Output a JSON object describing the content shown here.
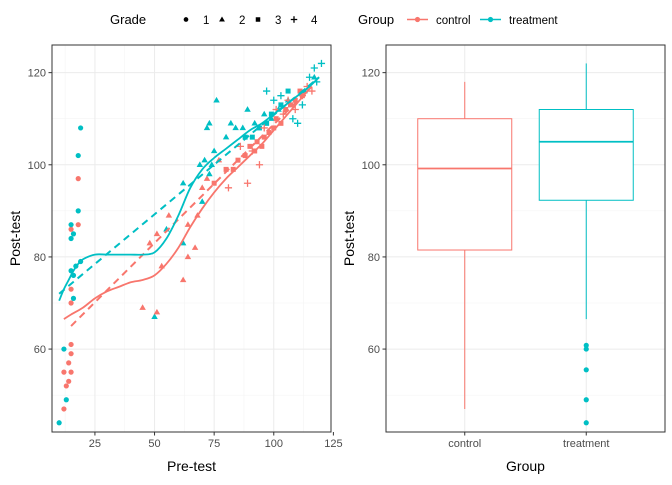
{
  "colors": {
    "control": "#F8766D",
    "treatment": "#00BFC4"
  },
  "legend": {
    "grade_title": "Grade",
    "grade_items": [
      {
        "label": "1",
        "shape": "circle"
      },
      {
        "label": "2",
        "shape": "triangle"
      },
      {
        "label": "3",
        "shape": "square"
      },
      {
        "label": "4",
        "shape": "plus"
      }
    ],
    "group_title": "Group",
    "group_items": [
      {
        "label": "control",
        "color": "#F8766D"
      },
      {
        "label": "treatment",
        "color": "#00BFC4"
      }
    ]
  },
  "chart_data": [
    {
      "type": "scatter",
      "xlabel": "Pre-test",
      "ylabel": "Post-test",
      "xlim": [
        7,
        124
      ],
      "ylim": [
        42,
        126
      ],
      "xticks": [
        25,
        50,
        75,
        100,
        125
      ],
      "yticks": [
        60,
        80,
        100,
        120
      ],
      "grid": true,
      "points": [
        {
          "x": 10,
          "y": 44,
          "group": "treatment",
          "grade": 1
        },
        {
          "x": 12,
          "y": 47,
          "group": "control",
          "grade": 1
        },
        {
          "x": 13,
          "y": 49,
          "group": "treatment",
          "grade": 1
        },
        {
          "x": 13,
          "y": 52,
          "group": "control",
          "grade": 1
        },
        {
          "x": 14,
          "y": 53,
          "group": "control",
          "grade": 1
        },
        {
          "x": 12,
          "y": 55,
          "group": "control",
          "grade": 1
        },
        {
          "x": 15,
          "y": 55,
          "group": "control",
          "grade": 1
        },
        {
          "x": 14,
          "y": 57,
          "group": "control",
          "grade": 1
        },
        {
          "x": 15,
          "y": 59,
          "group": "control",
          "grade": 1
        },
        {
          "x": 12,
          "y": 60,
          "group": "treatment",
          "grade": 1
        },
        {
          "x": 15,
          "y": 61,
          "group": "control",
          "grade": 1
        },
        {
          "x": 15,
          "y": 70,
          "group": "control",
          "grade": 1
        },
        {
          "x": 16,
          "y": 71,
          "group": "treatment",
          "grade": 1
        },
        {
          "x": 15,
          "y": 73,
          "group": "control",
          "grade": 1
        },
        {
          "x": 16,
          "y": 76,
          "group": "treatment",
          "grade": 1
        },
        {
          "x": 15,
          "y": 77,
          "group": "treatment",
          "grade": 1
        },
        {
          "x": 17,
          "y": 78,
          "group": "treatment",
          "grade": 1
        },
        {
          "x": 19,
          "y": 79,
          "group": "treatment",
          "grade": 1
        },
        {
          "x": 15,
          "y": 84,
          "group": "treatment",
          "grade": 1
        },
        {
          "x": 16,
          "y": 85,
          "group": "treatment",
          "grade": 1
        },
        {
          "x": 15,
          "y": 86,
          "group": "control",
          "grade": 1
        },
        {
          "x": 15,
          "y": 87,
          "group": "treatment",
          "grade": 1
        },
        {
          "x": 18,
          "y": 87,
          "group": "control",
          "grade": 1
        },
        {
          "x": 18,
          "y": 90,
          "group": "treatment",
          "grade": 1
        },
        {
          "x": 18,
          "y": 97,
          "group": "control",
          "grade": 1
        },
        {
          "x": 18,
          "y": 102,
          "group": "treatment",
          "grade": 1
        },
        {
          "x": 19,
          "y": 108,
          "group": "treatment",
          "grade": 1
        },
        {
          "x": 45,
          "y": 69,
          "group": "control",
          "grade": 2
        },
        {
          "x": 50,
          "y": 67,
          "group": "treatment",
          "grade": 2
        },
        {
          "x": 51,
          "y": 68,
          "group": "control",
          "grade": 2
        },
        {
          "x": 53,
          "y": 78,
          "group": "control",
          "grade": 2
        },
        {
          "x": 48,
          "y": 83,
          "group": "control",
          "grade": 2
        },
        {
          "x": 51,
          "y": 85,
          "group": "control",
          "grade": 2
        },
        {
          "x": 55,
          "y": 86,
          "group": "treatment",
          "grade": 2
        },
        {
          "x": 56,
          "y": 89,
          "group": "control",
          "grade": 2
        },
        {
          "x": 62,
          "y": 75,
          "group": "control",
          "grade": 2
        },
        {
          "x": 64,
          "y": 80,
          "group": "control",
          "grade": 2
        },
        {
          "x": 62,
          "y": 83,
          "group": "treatment",
          "grade": 2
        },
        {
          "x": 64,
          "y": 87,
          "group": "control",
          "grade": 2
        },
        {
          "x": 67,
          "y": 82,
          "group": "control",
          "grade": 2
        },
        {
          "x": 62,
          "y": 96,
          "group": "treatment",
          "grade": 2
        },
        {
          "x": 68,
          "y": 89,
          "group": "control",
          "grade": 2
        },
        {
          "x": 70,
          "y": 92,
          "group": "treatment",
          "grade": 2
        },
        {
          "x": 70,
          "y": 95,
          "group": "control",
          "grade": 2
        },
        {
          "x": 72,
          "y": 97,
          "group": "control",
          "grade": 2
        },
        {
          "x": 73,
          "y": 98,
          "group": "treatment",
          "grade": 2
        },
        {
          "x": 69,
          "y": 100,
          "group": "treatment",
          "grade": 2
        },
        {
          "x": 71,
          "y": 101,
          "group": "treatment",
          "grade": 2
        },
        {
          "x": 74,
          "y": 100,
          "group": "treatment",
          "grade": 2
        },
        {
          "x": 75,
          "y": 103,
          "group": "treatment",
          "grade": 2
        },
        {
          "x": 77,
          "y": 101,
          "group": "control",
          "grade": 2
        },
        {
          "x": 72,
          "y": 108,
          "group": "treatment",
          "grade": 2
        },
        {
          "x": 73,
          "y": 109,
          "group": "treatment",
          "grade": 2
        },
        {
          "x": 82,
          "y": 109,
          "group": "treatment",
          "grade": 2
        },
        {
          "x": 76,
          "y": 114,
          "group": "treatment",
          "grade": 2
        },
        {
          "x": 80,
          "y": 106,
          "group": "treatment",
          "grade": 2
        },
        {
          "x": 84,
          "y": 108,
          "group": "treatment",
          "grade": 2
        },
        {
          "x": 87,
          "y": 108,
          "group": "treatment",
          "grade": 2
        },
        {
          "x": 89,
          "y": 112,
          "group": "treatment",
          "grade": 2
        },
        {
          "x": 92,
          "y": 109,
          "group": "treatment",
          "grade": 2
        },
        {
          "x": 96,
          "y": 111,
          "group": "treatment",
          "grade": 2
        },
        {
          "x": 99,
          "y": 110,
          "group": "treatment",
          "grade": 2
        },
        {
          "x": 102,
          "y": 112,
          "group": "treatment",
          "grade": 2
        },
        {
          "x": 106,
          "y": 114,
          "group": "treatment",
          "grade": 2
        },
        {
          "x": 113,
          "y": 116,
          "group": "treatment",
          "grade": 2
        },
        {
          "x": 117,
          "y": 119,
          "group": "treatment",
          "grade": 2
        },
        {
          "x": 75,
          "y": 96,
          "group": "control",
          "grade": 3
        },
        {
          "x": 80,
          "y": 99,
          "group": "control",
          "grade": 3
        },
        {
          "x": 83,
          "y": 99,
          "group": "control",
          "grade": 3
        },
        {
          "x": 85,
          "y": 101,
          "group": "control",
          "grade": 3
        },
        {
          "x": 88,
          "y": 102,
          "group": "control",
          "grade": 3
        },
        {
          "x": 90,
          "y": 104,
          "group": "control",
          "grade": 3
        },
        {
          "x": 92,
          "y": 103,
          "group": "control",
          "grade": 3
        },
        {
          "x": 93,
          "y": 105,
          "group": "control",
          "grade": 3
        },
        {
          "x": 95,
          "y": 104,
          "group": "control",
          "grade": 3
        },
        {
          "x": 96,
          "y": 106,
          "group": "control",
          "grade": 3
        },
        {
          "x": 98,
          "y": 107,
          "group": "control",
          "grade": 3
        },
        {
          "x": 100,
          "y": 108,
          "group": "control",
          "grade": 3
        },
        {
          "x": 101,
          "y": 110,
          "group": "control",
          "grade": 3
        },
        {
          "x": 103,
          "y": 109,
          "group": "control",
          "grade": 3
        },
        {
          "x": 105,
          "y": 112,
          "group": "control",
          "grade": 3
        },
        {
          "x": 107,
          "y": 113,
          "group": "control",
          "grade": 3
        },
        {
          "x": 109,
          "y": 114,
          "group": "control",
          "grade": 3
        },
        {
          "x": 111,
          "y": 116,
          "group": "control",
          "grade": 3
        },
        {
          "x": 112,
          "y": 115,
          "group": "control",
          "grade": 3
        },
        {
          "x": 91,
          "y": 106,
          "group": "treatment",
          "grade": 3
        },
        {
          "x": 94,
          "y": 108,
          "group": "treatment",
          "grade": 3
        },
        {
          "x": 97,
          "y": 109,
          "group": "treatment",
          "grade": 3
        },
        {
          "x": 99,
          "y": 111,
          "group": "treatment",
          "grade": 3
        },
        {
          "x": 103,
          "y": 113,
          "group": "treatment",
          "grade": 3
        },
        {
          "x": 106,
          "y": 116,
          "group": "treatment",
          "grade": 3
        },
        {
          "x": 88,
          "y": 106,
          "group": "treatment",
          "grade": 3
        },
        {
          "x": 86,
          "y": 104,
          "group": "control",
          "grade": 4
        },
        {
          "x": 91,
          "y": 103,
          "group": "control",
          "grade": 4
        },
        {
          "x": 94,
          "y": 100,
          "group": "control",
          "grade": 4
        },
        {
          "x": 81,
          "y": 95,
          "group": "control",
          "grade": 4
        },
        {
          "x": 89,
          "y": 96,
          "group": "control",
          "grade": 4
        },
        {
          "x": 96,
          "y": 108,
          "group": "control",
          "grade": 4
        },
        {
          "x": 101,
          "y": 112,
          "group": "control",
          "grade": 4
        },
        {
          "x": 104,
          "y": 111,
          "group": "control",
          "grade": 4
        },
        {
          "x": 106,
          "y": 114,
          "group": "control",
          "grade": 4
        },
        {
          "x": 109,
          "y": 112,
          "group": "control",
          "grade": 4
        },
        {
          "x": 112,
          "y": 115,
          "group": "control",
          "grade": 4
        },
        {
          "x": 114,
          "y": 117,
          "group": "control",
          "grade": 4
        },
        {
          "x": 116,
          "y": 116,
          "group": "control",
          "grade": 4
        },
        {
          "x": 97,
          "y": 116,
          "group": "treatment",
          "grade": 4
        },
        {
          "x": 100,
          "y": 114,
          "group": "treatment",
          "grade": 4
        },
        {
          "x": 103,
          "y": 115,
          "group": "treatment",
          "grade": 4
        },
        {
          "x": 108,
          "y": 110,
          "group": "treatment",
          "grade": 4
        },
        {
          "x": 110,
          "y": 109,
          "group": "treatment",
          "grade": 4
        },
        {
          "x": 112,
          "y": 113,
          "group": "treatment",
          "grade": 4
        },
        {
          "x": 115,
          "y": 119,
          "group": "treatment",
          "grade": 4
        },
        {
          "x": 117,
          "y": 121,
          "group": "treatment",
          "grade": 4
        },
        {
          "x": 120,
          "y": 122,
          "group": "treatment",
          "grade": 4
        },
        {
          "x": 118,
          "y": 118,
          "group": "treatment",
          "grade": 4
        }
      ],
      "smooth_solid": [
        {
          "name": "control",
          "x": [
            12,
            15,
            20,
            25,
            30,
            35,
            40,
            45,
            50,
            55,
            60,
            65,
            70,
            75,
            80,
            85,
            90,
            95,
            100,
            105,
            110,
            115
          ],
          "y": [
            66.5,
            67.5,
            69,
            71,
            72.5,
            73.5,
            74.5,
            75,
            76,
            78.5,
            82,
            86.5,
            90.5,
            94,
            97,
            99.5,
            102,
            104.5,
            107.5,
            110.5,
            113.5,
            116.5
          ]
        },
        {
          "name": "treatment",
          "x": [
            10,
            12,
            14,
            16,
            18,
            20,
            25,
            30,
            35,
            40,
            45,
            50,
            55,
            60,
            65,
            70,
            75,
            80,
            85,
            90,
            95,
            100,
            105,
            110,
            115,
            119
          ],
          "y": [
            70.5,
            73,
            75,
            77,
            78.5,
            79.5,
            80.5,
            80.5,
            80.5,
            80.5,
            80.5,
            81,
            84,
            89,
            95,
            99,
            101.5,
            103.5,
            105.5,
            107.5,
            109,
            111,
            113,
            115,
            117,
            119
          ]
        }
      ],
      "smooth_dashed": [
        {
          "name": "control",
          "x": [
            15,
            116
          ],
          "y": [
            65,
            117
          ]
        },
        {
          "name": "treatment",
          "x": [
            10,
            119
          ],
          "y": [
            72,
            119
          ]
        }
      ]
    },
    {
      "type": "box",
      "xlabel": "Group",
      "ylabel": "Post-test",
      "ylim": [
        42,
        126
      ],
      "yticks": [
        60,
        80,
        100,
        120
      ],
      "grid": true,
      "categories": [
        "control",
        "treatment"
      ],
      "boxes": [
        {
          "name": "control",
          "whisker_low": 47,
          "q1": 81.5,
          "median": 99.2,
          "q3": 110,
          "whisker_high": 118,
          "outliers": []
        },
        {
          "name": "treatment",
          "whisker_low": 66.5,
          "q1": 92.3,
          "median": 105,
          "q3": 112,
          "whisker_high": 122,
          "outliers": [
            44,
            49,
            55.5,
            60,
            60.8
          ]
        }
      ]
    }
  ]
}
